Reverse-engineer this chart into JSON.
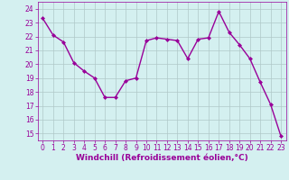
{
  "x": [
    0,
    1,
    2,
    3,
    4,
    5,
    6,
    7,
    8,
    9,
    10,
    11,
    12,
    13,
    14,
    15,
    16,
    17,
    18,
    19,
    20,
    21,
    22,
    23
  ],
  "y": [
    23.3,
    22.1,
    21.6,
    20.1,
    19.5,
    19.0,
    17.6,
    17.6,
    18.8,
    19.0,
    21.7,
    21.9,
    21.8,
    21.7,
    20.4,
    21.8,
    21.9,
    23.8,
    22.3,
    21.4,
    20.4,
    18.7,
    17.1,
    14.8
  ],
  "line_color": "#990099",
  "marker": "D",
  "marker_size": 2.0,
  "xlabel": "Windchill (Refroidissement éolien,°C)",
  "xlabel_fontsize": 6.5,
  "bg_color": "#d4f0f0",
  "grid_color": "#b0c8c8",
  "ylim": [
    14.5,
    24.5
  ],
  "xlim": [
    -0.5,
    23.5
  ],
  "yticks": [
    15,
    16,
    17,
    18,
    19,
    20,
    21,
    22,
    23,
    24
  ],
  "xticks": [
    0,
    1,
    2,
    3,
    4,
    5,
    6,
    7,
    8,
    9,
    10,
    11,
    12,
    13,
    14,
    15,
    16,
    17,
    18,
    19,
    20,
    21,
    22,
    23
  ],
  "tick_fontsize": 5.5,
  "tick_color": "#990099",
  "linewidth": 1.0
}
